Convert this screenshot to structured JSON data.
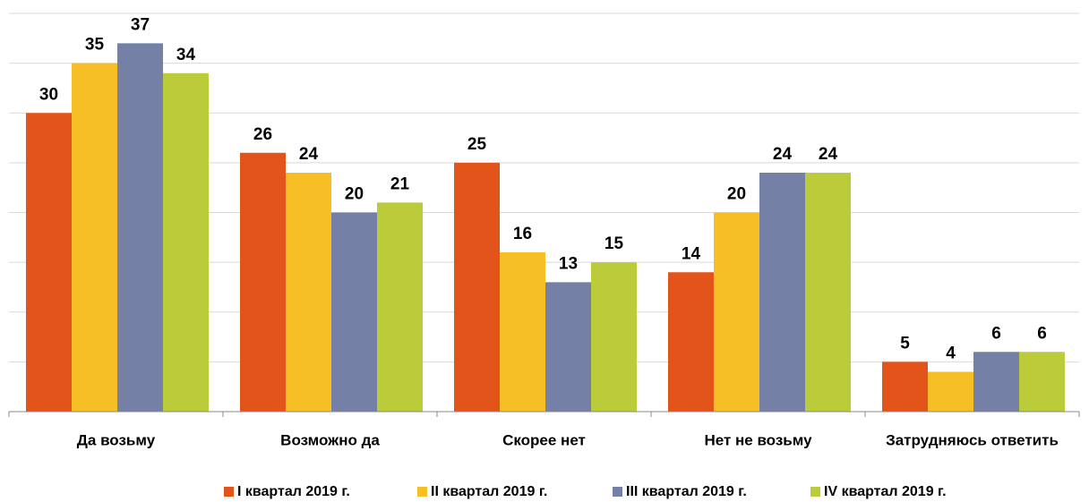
{
  "chart_data": {
    "type": "bar",
    "categories": [
      "Да возьму",
      "Возможно да",
      "Скорее нет",
      "Нет не возьму",
      "Затрудняюсь ответить"
    ],
    "series": [
      {
        "name": "I квартал 2019 г.",
        "color": "#e2541a",
        "values": [
          30,
          26,
          25,
          14,
          5
        ]
      },
      {
        "name": "II квартал 2019 г.",
        "color": "#f6bf26",
        "values": [
          35,
          24,
          16,
          20,
          4
        ]
      },
      {
        "name": "III квартал 2019 г.",
        "color": "#7480a6",
        "values": [
          37,
          20,
          13,
          24,
          6
        ]
      },
      {
        "name": "IV квартал 2019 г.",
        "color": "#bccb3a",
        "values": [
          34,
          21,
          15,
          24,
          6
        ]
      }
    ],
    "ylim": [
      0,
      40
    ],
    "yticks": [
      0,
      5,
      10,
      15,
      20,
      25,
      30,
      35,
      40
    ],
    "grid": true,
    "legend": "bottom"
  }
}
